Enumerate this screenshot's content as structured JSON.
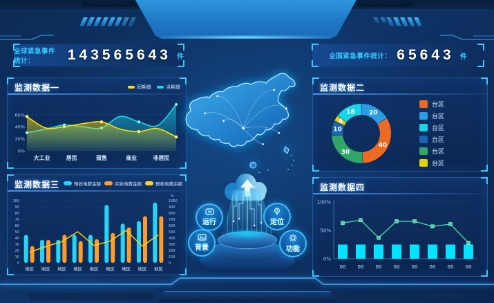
{
  "header": {
    "left_counter": {
      "label": "全球紧急事件统计：",
      "value": "143565643",
      "unit": "件"
    },
    "right_counter": {
      "label": "全国紧急事件统计：",
      "value": "65643",
      "unit": "件"
    }
  },
  "panels": {
    "p1_title": "监测数据一",
    "p2_title": "监测数据二",
    "p3_title": "监测数据三",
    "p4_title": "监测数据四"
  },
  "center": {
    "buttons": [
      {
        "label": "运行",
        "icon": "monitor-icon"
      },
      {
        "label": "定位",
        "icon": "target-icon"
      },
      {
        "label": "背景",
        "icon": "image-icon"
      },
      {
        "label": "功能",
        "icon": "gear-icon"
      }
    ]
  },
  "colors": {
    "accent_cyan": "#35c8ff",
    "panel_border": "#2d73c3",
    "series_yellow": "#ffe000",
    "series_cyan": "#18d8e8",
    "bar_cyan": "#29d3f5",
    "bar_orange": "#ff9b2a",
    "line_yellow": "#ffd415",
    "bar_bright_cyan": "#00e4ff",
    "line_green": "#46d6a8"
  },
  "chart_data": [
    {
      "id": "chart1",
      "type": "area",
      "title": "监测数据一",
      "categories": [
        "大工业",
        "居民",
        "趸售",
        "商业",
        "非居民"
      ],
      "series": [
        {
          "name": "同期值",
          "color": "#ffe000",
          "values": [
            57,
            38,
            40,
            45,
            48,
            36,
            32,
            37,
            23
          ]
        },
        {
          "name": "当期值",
          "color": "#18d8e8",
          "values": [
            30,
            36,
            43,
            40,
            38,
            57,
            48,
            42,
            77
          ]
        }
      ],
      "yticks": [
        {
          "v": 0,
          "label": "0%"
        },
        {
          "v": 20,
          "label": "20%"
        },
        {
          "v": 40,
          "label": "40%"
        },
        {
          "v": 60,
          "label": "60%"
        }
      ],
      "ylim": [
        0,
        85
      ],
      "grid": true,
      "legend_position": "top-right"
    },
    {
      "id": "chart2",
      "type": "donut",
      "title": "监测数据二",
      "slices": [
        {
          "label": "台区",
          "value": 20,
          "color": "#2b9de3"
        },
        {
          "label": "台区",
          "value": 40,
          "color": "#ed6a21"
        },
        {
          "label": "台区",
          "value": 30,
          "color": "#2fa766"
        },
        {
          "label": "台区",
          "value": 10,
          "color": "#1866b0"
        },
        {
          "label": "台区",
          "value": 4,
          "color": "#e3cf14"
        },
        {
          "label": "台区",
          "value": 18,
          "color": "#15d6e8"
        }
      ],
      "legend": [
        {
          "label": "台区",
          "color": "#ed6a21"
        },
        {
          "label": "台区",
          "color": "#2b9de3"
        },
        {
          "label": "台区",
          "color": "#15d6e8"
        },
        {
          "label": "台区",
          "color": "#1866b0"
        },
        {
          "label": "台区",
          "color": "#2fa766"
        },
        {
          "label": "台区",
          "color": "#e3cf14"
        }
      ],
      "legend_position": "right"
    },
    {
      "id": "chart3",
      "type": "bar-line",
      "title": "监测数据三",
      "categories": [
        "地区",
        "地区",
        "地区",
        "地区",
        "地区",
        "地区",
        "地区",
        "地区",
        "地区"
      ],
      "series": [
        {
          "name": "预收电费金额",
          "type": "bar",
          "color": "#29d3f5",
          "values": [
            45,
            37,
            37,
            45,
            45,
            93,
            63,
            67,
            97
          ]
        },
        {
          "name": "实收电费金额",
          "type": "bar",
          "color": "#ff9b2a",
          "values": [
            27,
            37,
            45,
            35,
            38,
            48,
            57,
            75,
            75
          ]
        },
        {
          "name": "预收电费余额",
          "type": "line",
          "color": "#ffd415",
          "axis": "right",
          "values": [
            170,
            260,
            340,
            500,
            280,
            350,
            520,
            270,
            450
          ]
        }
      ],
      "left_axis": {
        "min": 0,
        "max": 100,
        "step": 10
      },
      "right_axis": {
        "min": 0,
        "max": 1000,
        "step": 100,
        "unit": "%"
      }
    },
    {
      "id": "chart4",
      "type": "bar-line",
      "title": "监测数据四",
      "categories": [
        "00",
        "00",
        "00",
        "00",
        "00",
        "00",
        "00",
        "00"
      ],
      "series": [
        {
          "name": "bar",
          "type": "bar",
          "color": "#00e4ff",
          "values": [
            25,
            25,
            25,
            25,
            25,
            25,
            25,
            25
          ]
        },
        {
          "name": "line",
          "type": "line",
          "color": "#46d6a8",
          "values": [
            63,
            68,
            37,
            66,
            66,
            57,
            61,
            28
          ]
        }
      ],
      "yticks": [
        {
          "v": 0,
          "label": "0%"
        },
        {
          "v": 50,
          "label": "50%"
        },
        {
          "v": 100,
          "label": "100%"
        }
      ],
      "ylim": [
        0,
        100
      ]
    }
  ]
}
